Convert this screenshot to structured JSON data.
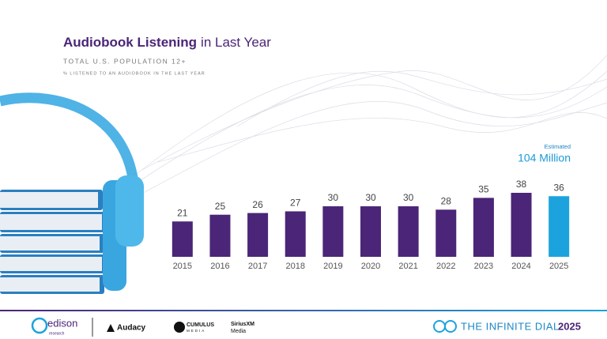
{
  "chart_data": {
    "type": "bar",
    "title": {
      "bold": "Audiobook Listening",
      "rest": "in Last Year"
    },
    "subtitle": "TOTAL U.S. POPULATION 12+",
    "note": "% LISTENED TO AN AUDIOBOOK IN THE LAST YEAR",
    "categories": [
      "2015",
      "2016",
      "2017",
      "2018",
      "2019",
      "2020",
      "2021",
      "2022",
      "2023",
      "2024",
      "2025"
    ],
    "values": [
      21,
      25,
      26,
      27,
      30,
      30,
      30,
      28,
      35,
      38,
      36
    ],
    "colors": [
      "#4b2577",
      "#4b2577",
      "#4b2577",
      "#4b2577",
      "#4b2577",
      "#4b2577",
      "#4b2577",
      "#4b2577",
      "#4b2577",
      "#4b2577",
      "#1ca3dd"
    ],
    "annotation": {
      "label": "Estimated",
      "text": "104 Million"
    }
  },
  "footer": {
    "edison": "edison",
    "edison_sub": "research",
    "audacy": "Audacy",
    "cumulus": "CUMULUS",
    "cumulus_sub": "MEDIA",
    "sirius": "SiriusXM",
    "sirius_sub": "Media",
    "dial": "THE INFINITE DIAL",
    "dial_year": "2025"
  }
}
